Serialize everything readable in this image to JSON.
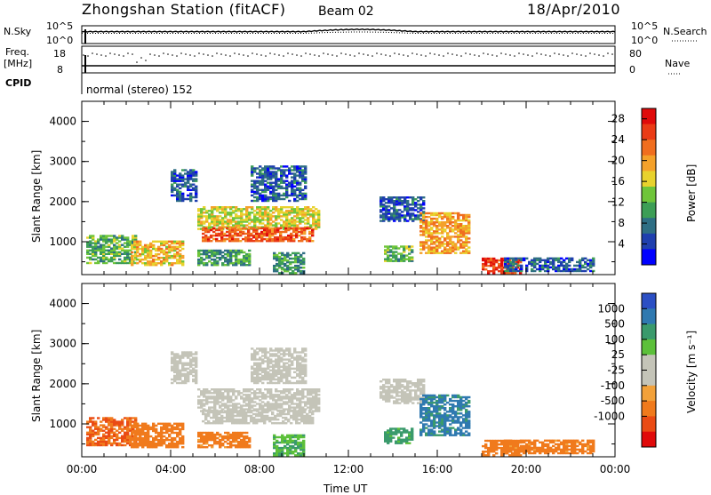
{
  "header": {
    "station_title": "Zhongshan Station (fitACF)",
    "beam": "Beam 02",
    "date": "18/Apr/2010"
  },
  "status_panels": {
    "nsky_label": "N.Sky",
    "nsearch_label": "N.Search",
    "noise_tick_top": "10^5",
    "noise_tick_bottom": "10^0",
    "freq_label_line1": "Freq.",
    "freq_label_line2": "[MHz]",
    "freq_tick_top": "18",
    "freq_tick_bottom": "8",
    "nave_label": "Nave",
    "nave_tick_top": "80",
    "nave_tick_bottom": "0",
    "cpid_label": "CPID",
    "cpid_value": "normal (stereo) 152"
  },
  "chart_data": [
    {
      "type": "heatmap",
      "panel": "power",
      "ylabel": "Slant Range [km]",
      "xlabel": "Time UT",
      "ylim": [
        180,
        4500
      ],
      "xlim_hours": [
        0,
        24
      ],
      "y_ticks": [
        "1000",
        "2000",
        "3000",
        "4000"
      ],
      "x_ticks": [
        "00:00",
        "04:00",
        "08:00",
        "12:00",
        "16:00",
        "20:00",
        "00:00"
      ],
      "colorbar": {
        "label": "Power [dB]",
        "ticks": [
          "4",
          "8",
          "12",
          "16",
          "20",
          "24",
          "28"
        ],
        "range": [
          0,
          30
        ],
        "colors": [
          "#0000ff",
          "#1f3fae",
          "#2e6e84",
          "#3d9e56",
          "#6fc53a",
          "#e8d22d",
          "#f4a12a",
          "#f06e1f",
          "#ea3b15",
          "#e00a0a"
        ]
      },
      "regions": [
        {
          "t0": 0.2,
          "t1": 2.4,
          "r0": 450,
          "r1": 1150,
          "level": 12
        },
        {
          "t0": 2.2,
          "t1": 4.6,
          "r0": 400,
          "r1": 1000,
          "level": 18
        },
        {
          "t0": 4.0,
          "t1": 5.2,
          "r0": 2000,
          "r1": 2800,
          "level": 6
        },
        {
          "t0": 5.2,
          "t1": 10.6,
          "r0": 1300,
          "r1": 1850,
          "level": 16
        },
        {
          "t0": 5.4,
          "t1": 10.4,
          "r0": 1000,
          "r1": 1350,
          "level": 24
        },
        {
          "t0": 5.2,
          "t1": 7.6,
          "r0": 400,
          "r1": 800,
          "level": 10
        },
        {
          "t0": 7.6,
          "t1": 10.0,
          "r0": 2000,
          "r1": 2900,
          "level": 6
        },
        {
          "t0": 8.6,
          "t1": 10.0,
          "r0": 200,
          "r1": 700,
          "level": 10
        },
        {
          "t0": 13.4,
          "t1": 15.4,
          "r0": 1500,
          "r1": 2100,
          "level": 6
        },
        {
          "t0": 13.6,
          "t1": 14.8,
          "r0": 500,
          "r1": 900,
          "level": 12
        },
        {
          "t0": 15.2,
          "t1": 17.4,
          "r0": 700,
          "r1": 1700,
          "level": 20
        },
        {
          "t0": 18.0,
          "t1": 19.8,
          "r0": 200,
          "r1": 600,
          "level": 26
        },
        {
          "t0": 19.0,
          "t1": 23.0,
          "r0": 250,
          "r1": 600,
          "level": 6
        }
      ]
    },
    {
      "type": "heatmap",
      "panel": "velocity",
      "ylabel": "Slant Range [km]",
      "xlabel": "Time UT",
      "ylim": [
        180,
        4500
      ],
      "xlim_hours": [
        0,
        24
      ],
      "y_ticks": [
        "1000",
        "2000",
        "3000",
        "4000"
      ],
      "x_ticks": [
        "00:00",
        "04:00",
        "08:00",
        "12:00",
        "16:00",
        "20:00",
        "00:00"
      ],
      "colorbar": {
        "label": "Velocity [m s⁻¹]",
        "ticks": [
          "1000",
          "500",
          "100",
          "25",
          "-25",
          "-100",
          "-500",
          "-1000"
        ],
        "colors": [
          "#2b4fc4",
          "#2f79b0",
          "#3a9a6c",
          "#5cc03a",
          "#c4c4b8",
          "#c4c4b8",
          "#f2a13a",
          "#f07a1c",
          "#ea4b14",
          "#e00a0a"
        ]
      },
      "regions": [
        {
          "t0": 0.2,
          "t1": 2.4,
          "r0": 450,
          "r1": 1150,
          "level": -300
        },
        {
          "t0": 2.2,
          "t1": 4.6,
          "r0": 400,
          "r1": 1000,
          "level": -150
        },
        {
          "t0": 4.0,
          "t1": 5.2,
          "r0": 2000,
          "r1": 2800,
          "level": 0
        },
        {
          "t0": 5.2,
          "t1": 10.6,
          "r0": 1300,
          "r1": 1850,
          "level": 0
        },
        {
          "t0": 5.4,
          "t1": 10.4,
          "r0": 1000,
          "r1": 1350,
          "level": 0
        },
        {
          "t0": 5.2,
          "t1": 7.6,
          "r0": 400,
          "r1": 800,
          "level": -100
        },
        {
          "t0": 7.6,
          "t1": 10.0,
          "r0": 2000,
          "r1": 2900,
          "level": 0
        },
        {
          "t0": 8.6,
          "t1": 10.0,
          "r0": 200,
          "r1": 700,
          "level": 50
        },
        {
          "t0": 13.4,
          "t1": 15.4,
          "r0": 1500,
          "r1": 2100,
          "level": 0
        },
        {
          "t0": 13.6,
          "t1": 14.8,
          "r0": 500,
          "r1": 900,
          "level": 100
        },
        {
          "t0": 15.2,
          "t1": 17.4,
          "r0": 700,
          "r1": 1700,
          "level": 400
        },
        {
          "t0": 18.0,
          "t1": 19.8,
          "r0": 200,
          "r1": 600,
          "level": -150
        },
        {
          "t0": 19.0,
          "t1": 23.0,
          "r0": 250,
          "r1": 600,
          "level": -100
        }
      ]
    }
  ]
}
